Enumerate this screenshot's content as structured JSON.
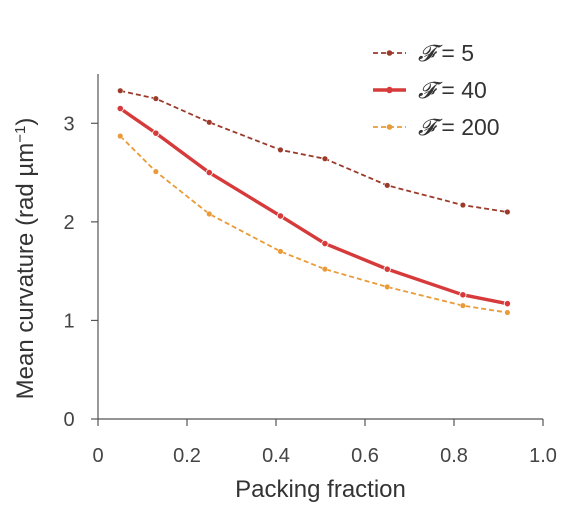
{
  "chart_data": {
    "type": "line",
    "xlabel": "Packing fraction",
    "ylabel": "Mean curvature (rad µm",
    "ylabel_sup": "−1",
    "ylabel_end": ")",
    "xlim": [
      0,
      1.0
    ],
    "ylim": [
      0,
      3.5
    ],
    "x_ticks": [
      {
        "value": 0,
        "label": "0"
      },
      {
        "value": 0.2,
        "label": "0.2"
      },
      {
        "value": 0.4,
        "label": "0.4"
      },
      {
        "value": 0.6,
        "label": "0.6"
      },
      {
        "value": 0.8,
        "label": "0.8"
      },
      {
        "value": 1.0,
        "label": "1.0"
      }
    ],
    "y_ticks": [
      {
        "value": 0,
        "label": "0"
      },
      {
        "value": 1,
        "label": "1"
      },
      {
        "value": 2,
        "label": "2"
      },
      {
        "value": 3,
        "label": "3"
      }
    ],
    "grid": false,
    "legend_position": "top-right",
    "x": [
      0.05,
      0.13,
      0.25,
      0.41,
      0.51,
      0.65,
      0.82,
      0.92
    ],
    "series": [
      {
        "name": "𝓕 = 5",
        "symbol": "𝓕",
        "value_text": " = 5",
        "color": "#9b3a2a",
        "style": "dashed",
        "values": [
          3.33,
          3.25,
          3.01,
          2.73,
          2.64,
          2.37,
          2.17,
          2.1
        ]
      },
      {
        "name": "𝓕 = 40",
        "symbol": "𝓕",
        "value_text": " = 40",
        "color": "#d63a3a",
        "style": "solid",
        "values": [
          3.15,
          2.9,
          2.5,
          2.06,
          1.78,
          1.52,
          1.26,
          1.17
        ]
      },
      {
        "name": "𝓕 = 200",
        "symbol": "𝓕",
        "value_text": " = 200",
        "color": "#eb9a38",
        "style": "dashed",
        "values": [
          2.87,
          2.51,
          2.08,
          1.7,
          1.52,
          1.34,
          1.15,
          1.08
        ]
      }
    ]
  }
}
